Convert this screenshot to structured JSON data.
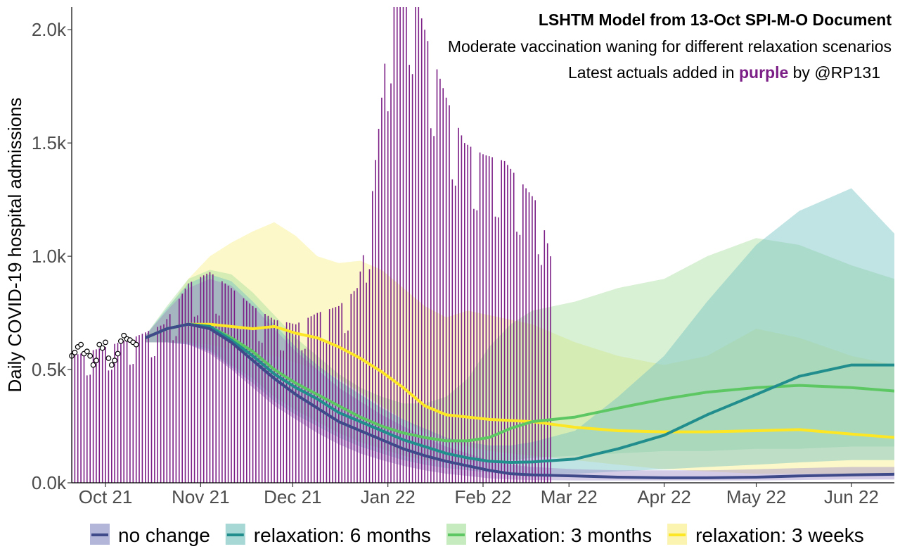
{
  "chart_data": {
    "type": "line",
    "title": "LSHTM Model from 13-Oct SPI-M-O Document",
    "subtitle": "Moderate vaccination waning for different relaxation scenarios",
    "note": {
      "before": "Latest actuals added in ",
      "highlight": "purple",
      "after": " by @RP131"
    },
    "ylabel": "Daily COVID-19 hospital admissions",
    "x_range": [
      "2021-09-20",
      "2022-06-15"
    ],
    "ylim": [
      0,
      2100
    ],
    "x_ticks": [
      {
        "date": "2021-10-01",
        "label": "Oct 21"
      },
      {
        "date": "2021-11-01",
        "label": "Nov 21"
      },
      {
        "date": "2021-12-01",
        "label": "Dec 21"
      },
      {
        "date": "2022-01-01",
        "label": "Jan 22"
      },
      {
        "date": "2022-02-01",
        "label": "Feb 22"
      },
      {
        "date": "2022-03-01",
        "label": "Mar 22"
      },
      {
        "date": "2022-04-01",
        "label": "Apr 22"
      },
      {
        "date": "2022-05-01",
        "label": "May 22"
      },
      {
        "date": "2022-06-01",
        "label": "Jun 22"
      }
    ],
    "y_ticks": [
      {
        "value": 0,
        "label": "0.0k"
      },
      {
        "value": 500,
        "label": "0.5k"
      },
      {
        "value": 1000,
        "label": "1.0k"
      },
      {
        "value": 1500,
        "label": "1.5k"
      },
      {
        "value": 2000,
        "label": "2.0k"
      }
    ],
    "grid": false,
    "legend_position": "bottom",
    "actuals_color": "#7B1E86",
    "series": [
      {
        "name": "no change",
        "color": "#3E4A89",
        "band_color": "#9F8FC9",
        "x": [
          "2021-10-14",
          "2021-10-21",
          "2021-10-28",
          "2021-11-04",
          "2021-11-11",
          "2021-11-18",
          "2021-11-25",
          "2021-12-02",
          "2021-12-09",
          "2021-12-16",
          "2021-12-23",
          "2021-12-30",
          "2022-01-06",
          "2022-01-13",
          "2022-01-20",
          "2022-01-27",
          "2022-02-03",
          "2022-02-10",
          "2022-02-17",
          "2022-03-03",
          "2022-03-17",
          "2022-04-01",
          "2022-04-15",
          "2022-05-01",
          "2022-05-15",
          "2022-06-01",
          "2022-06-15"
        ],
        "median": [
          640,
          680,
          700,
          680,
          620,
          540,
          460,
          390,
          330,
          270,
          230,
          190,
          150,
          120,
          95,
          75,
          55,
          40,
          35,
          30,
          25,
          22,
          22,
          25,
          30,
          35,
          38
        ],
        "lower": [
          620,
          620,
          610,
          570,
          500,
          420,
          340,
          280,
          220,
          170,
          130,
          100,
          75,
          55,
          40,
          30,
          20,
          15,
          12,
          10,
          10,
          10,
          10,
          10,
          12,
          15,
          15
        ],
        "upper": [
          650,
          760,
          860,
          900,
          870,
          780,
          680,
          580,
          500,
          420,
          360,
          300,
          250,
          200,
          160,
          130,
          100,
          80,
          70,
          60,
          55,
          55,
          55,
          60,
          65,
          70,
          70
        ]
      },
      {
        "name": "relaxation: 6 months",
        "color": "#218E8D",
        "band_color": "#74C2C0",
        "x": [
          "2021-10-14",
          "2021-10-21",
          "2021-10-28",
          "2021-11-04",
          "2021-11-11",
          "2021-11-18",
          "2021-11-25",
          "2021-12-02",
          "2021-12-09",
          "2021-12-16",
          "2021-12-23",
          "2021-12-30",
          "2022-01-06",
          "2022-01-13",
          "2022-01-20",
          "2022-01-27",
          "2022-02-03",
          "2022-02-10",
          "2022-02-17",
          "2022-03-03",
          "2022-03-17",
          "2022-04-01",
          "2022-04-15",
          "2022-05-01",
          "2022-05-15",
          "2022-06-01",
          "2022-06-15"
        ],
        "median": [
          640,
          680,
          700,
          690,
          630,
          560,
          480,
          420,
          370,
          310,
          270,
          230,
          190,
          160,
          130,
          110,
          95,
          90,
          92,
          105,
          150,
          210,
          300,
          390,
          470,
          520,
          520
        ],
        "lower": [
          620,
          620,
          610,
          580,
          510,
          440,
          360,
          300,
          250,
          200,
          160,
          130,
          100,
          80,
          65,
          55,
          45,
          40,
          40,
          40,
          50,
          60,
          70,
          80,
          90,
          100,
          100
        ],
        "upper": [
          650,
          770,
          880,
          920,
          890,
          800,
          700,
          600,
          520,
          450,
          390,
          330,
          280,
          240,
          200,
          180,
          165,
          165,
          180,
          230,
          380,
          560,
          800,
          1050,
          1200,
          1300,
          1100
        ]
      },
      {
        "name": "relaxation: 3 months",
        "color": "#5DC863",
        "band_color": "#A8DE9E",
        "x": [
          "2021-10-14",
          "2021-10-21",
          "2021-10-28",
          "2021-11-04",
          "2021-11-11",
          "2021-11-18",
          "2021-11-25",
          "2021-12-02",
          "2021-12-09",
          "2021-12-16",
          "2021-12-23",
          "2021-12-30",
          "2022-01-06",
          "2022-01-13",
          "2022-01-20",
          "2022-01-27",
          "2022-02-03",
          "2022-02-10",
          "2022-02-17",
          "2022-03-03",
          "2022-03-17",
          "2022-04-01",
          "2022-04-15",
          "2022-05-01",
          "2022-05-15",
          "2022-06-01",
          "2022-06-15"
        ],
        "median": [
          640,
          680,
          700,
          690,
          640,
          580,
          500,
          440,
          390,
          340,
          290,
          250,
          220,
          200,
          185,
          185,
          200,
          240,
          270,
          290,
          330,
          370,
          400,
          420,
          430,
          420,
          405
        ],
        "lower": [
          620,
          620,
          615,
          590,
          520,
          460,
          380,
          320,
          270,
          220,
          180,
          150,
          120,
          100,
          90,
          90,
          95,
          100,
          110,
          120,
          130,
          140,
          140,
          150,
          150,
          160,
          160
        ],
        "upper": [
          650,
          780,
          900,
          940,
          920,
          840,
          740,
          640,
          560,
          480,
          420,
          380,
          350,
          350,
          380,
          460,
          600,
          700,
          760,
          800,
          860,
          900,
          1000,
          1080,
          1050,
          960,
          900
        ]
      },
      {
        "name": "relaxation: 3 weeks",
        "color": "#FDE725",
        "band_color": "#F8F088",
        "x": [
          "2021-10-14",
          "2021-10-21",
          "2021-10-28",
          "2021-11-04",
          "2021-11-11",
          "2021-11-18",
          "2021-11-25",
          "2021-12-02",
          "2021-12-09",
          "2021-12-16",
          "2021-12-23",
          "2021-12-30",
          "2022-01-06",
          "2022-01-13",
          "2022-01-20",
          "2022-01-27",
          "2022-02-03",
          "2022-02-10",
          "2022-02-17",
          "2022-03-03",
          "2022-03-17",
          "2022-04-01",
          "2022-04-15",
          "2022-05-01",
          "2022-05-15",
          "2022-06-01",
          "2022-06-15"
        ],
        "median": [
          640,
          680,
          700,
          700,
          690,
          680,
          690,
          660,
          640,
          600,
          550,
          490,
          420,
          340,
          300,
          290,
          280,
          275,
          270,
          245,
          230,
          225,
          225,
          230,
          235,
          215,
          200
        ],
        "lower": [
          620,
          620,
          620,
          610,
          590,
          570,
          560,
          530,
          500,
          460,
          400,
          340,
          280,
          220,
          180,
          160,
          140,
          130,
          120,
          100,
          80,
          60,
          50,
          40,
          40,
          40,
          40
        ],
        "upper": [
          650,
          760,
          900,
          1000,
          1060,
          1110,
          1150,
          1090,
          1000,
          970,
          980,
          940,
          860,
          780,
          730,
          760,
          740,
          720,
          700,
          620,
          560,
          520,
          560,
          680,
          640,
          560,
          520
        ]
      }
    ],
    "actuals": {
      "x_start": "2021-09-20",
      "x_end": "2022-02-23",
      "step_days": 1,
      "keypoints": [
        [
          "2021-09-20",
          560
        ],
        [
          "2021-10-01",
          600
        ],
        [
          "2021-10-10",
          640
        ],
        [
          "2021-10-20",
          700
        ],
        [
          "2021-10-28",
          880
        ],
        [
          "2021-11-04",
          930
        ],
        [
          "2021-11-11",
          860
        ],
        [
          "2021-11-18",
          780
        ],
        [
          "2021-11-25",
          720
        ],
        [
          "2021-12-02",
          700
        ],
        [
          "2021-12-09",
          750
        ],
        [
          "2021-12-16",
          780
        ],
        [
          "2021-12-22",
          860
        ],
        [
          "2021-12-26",
          1150
        ],
        [
          "2021-12-30",
          1700
        ],
        [
          "2022-01-02",
          2150
        ],
        [
          "2022-01-08",
          2250
        ],
        [
          "2022-01-14",
          1950
        ],
        [
          "2022-01-20",
          1700
        ],
        [
          "2022-01-26",
          1500
        ],
        [
          "2022-02-01",
          1450
        ],
        [
          "2022-02-08",
          1420
        ],
        [
          "2022-02-15",
          1300
        ],
        [
          "2022-02-19",
          1230
        ],
        [
          "2022-02-23",
          1000
        ]
      ],
      "circles": [
        [
          "2021-09-20",
          560
        ],
        [
          "2021-09-21",
          575
        ],
        [
          "2021-09-22",
          600
        ],
        [
          "2021-09-23",
          610
        ],
        [
          "2021-09-24",
          570
        ],
        [
          "2021-09-25",
          580
        ],
        [
          "2021-09-26",
          560
        ],
        [
          "2021-09-27",
          520
        ],
        [
          "2021-09-28",
          540
        ],
        [
          "2021-09-29",
          610
        ],
        [
          "2021-09-30",
          595
        ],
        [
          "2021-10-01",
          620
        ],
        [
          "2021-10-02",
          550
        ],
        [
          "2021-10-03",
          520
        ],
        [
          "2021-10-04",
          540
        ],
        [
          "2021-10-05",
          570
        ],
        [
          "2021-10-06",
          625
        ],
        [
          "2021-10-07",
          650
        ],
        [
          "2021-10-08",
          635
        ],
        [
          "2021-10-09",
          630
        ],
        [
          "2021-10-10",
          620
        ],
        [
          "2021-10-11",
          610
        ]
      ]
    }
  },
  "legend": {
    "items": [
      {
        "label": "no change",
        "color": "#3E4A89",
        "band": "#B3B6D9"
      },
      {
        "label": "relaxation: 6 months",
        "color": "#218E8D",
        "band": "#A7D8D6"
      },
      {
        "label": "relaxation: 3 months",
        "color": "#5DC863",
        "band": "#C6EBBF"
      },
      {
        "label": "relaxation: 3 weeks",
        "color": "#FDE725",
        "band": "#FBF3B0"
      }
    ]
  }
}
